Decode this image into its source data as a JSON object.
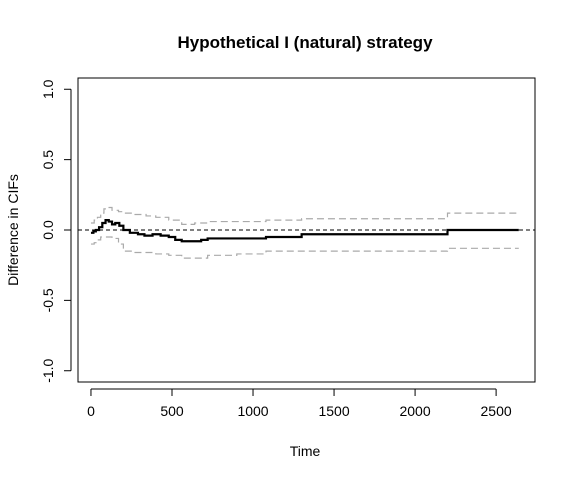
{
  "chart_data": {
    "type": "line",
    "title": "Hypothetical I (natural) strategy",
    "xlabel": "Time",
    "ylabel": "Difference in CIFs",
    "xlim": [
      -80,
      2740
    ],
    "ylim": [
      -1.08,
      1.08
    ],
    "x_ticks": [
      0,
      500,
      1000,
      1500,
      2000,
      2500
    ],
    "x_tick_labels": [
      "0",
      "500",
      "1000",
      "1500",
      "2000",
      "2500"
    ],
    "y_ticks": [
      -1.0,
      -0.5,
      0.0,
      0.5,
      1.0
    ],
    "y_tick_labels": [
      "-1.0",
      "-0.5",
      "0.0",
      "0.5",
      "1.0"
    ],
    "reference_line": {
      "y": 0,
      "style": "dashed",
      "color": "#000000"
    },
    "colors": {
      "estimate": "#000000",
      "ci": "#aaaaaa"
    },
    "series": [
      {
        "role": "estimate",
        "style": "solid-step",
        "x": [
          0,
          15,
          30,
          50,
          70,
          90,
          110,
          130,
          150,
          175,
          200,
          240,
          290,
          330,
          380,
          430,
          480,
          520,
          560,
          640,
          680,
          720,
          800,
          1000,
          1080,
          1300,
          2200,
          2640
        ],
        "y": [
          -0.02,
          -0.01,
          0.0,
          0.02,
          0.05,
          0.07,
          0.06,
          0.04,
          0.05,
          0.03,
          0.0,
          -0.02,
          -0.03,
          -0.04,
          -0.03,
          -0.04,
          -0.05,
          -0.07,
          -0.08,
          -0.08,
          -0.07,
          -0.06,
          -0.06,
          -0.06,
          -0.05,
          -0.03,
          0.0,
          0.0
        ]
      },
      {
        "role": "upper-ci",
        "style": "dashed-step",
        "x": [
          0,
          20,
          40,
          60,
          80,
          100,
          130,
          170,
          200,
          260,
          340,
          400,
          480,
          560,
          640,
          720,
          900,
          1080,
          1300,
          2200,
          2640
        ],
        "y": [
          0.05,
          0.07,
          0.09,
          0.12,
          0.15,
          0.16,
          0.14,
          0.13,
          0.12,
          0.11,
          0.1,
          0.09,
          0.07,
          0.04,
          0.05,
          0.06,
          0.06,
          0.07,
          0.08,
          0.12,
          0.12
        ]
      },
      {
        "role": "lower-ci",
        "style": "dashed-step",
        "x": [
          0,
          20,
          40,
          60,
          100,
          130,
          170,
          200,
          260,
          340,
          400,
          480,
          560,
          640,
          720,
          900,
          1080,
          1300,
          2200,
          2640
        ],
        "y": [
          -0.1,
          -0.09,
          -0.07,
          -0.05,
          -0.05,
          -0.06,
          -0.1,
          -0.15,
          -0.16,
          -0.16,
          -0.17,
          -0.18,
          -0.2,
          -0.2,
          -0.18,
          -0.17,
          -0.15,
          -0.15,
          -0.13,
          -0.13
        ]
      }
    ]
  }
}
